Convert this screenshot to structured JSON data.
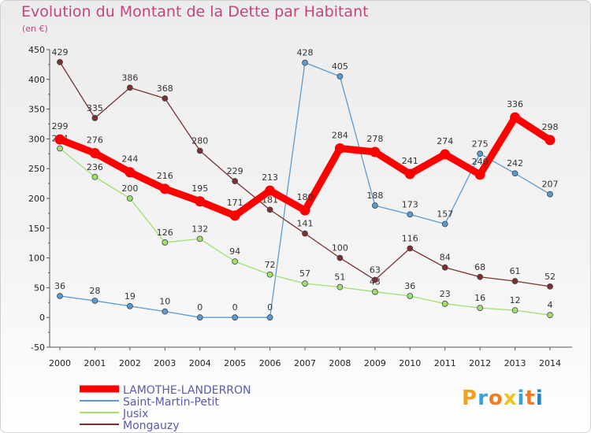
{
  "title": "Evolution du Montant de la Dette par Habitant",
  "unit": "(en €)",
  "logo": "Proxiti",
  "chart_data": {
    "type": "line",
    "title": "Evolution du Montant de la Dette par Habitant",
    "subtitle": "(en €)",
    "x": [
      "2000",
      "2001",
      "2002",
      "2003",
      "2004",
      "2005",
      "2006",
      "2007",
      "2008",
      "2009",
      "2010",
      "2011",
      "2012",
      "2013",
      "2014"
    ],
    "ylim": [
      -50,
      450
    ],
    "yticks": [
      -50,
      0,
      50,
      100,
      150,
      200,
      250,
      300,
      350,
      400,
      450
    ],
    "grid": false,
    "legend_position": "bottom-left",
    "series": [
      {
        "name": "LAMOTHE-LANDERRON",
        "color": "#ff0000",
        "values": [
          299,
          276,
          244,
          216,
          195,
          171,
          213,
          180,
          284,
          278,
          241,
          274,
          240,
          336,
          298
        ]
      },
      {
        "name": "Saint-Martin-Petit",
        "color": "#5b9bd0",
        "values": [
          36,
          28,
          19,
          10,
          0,
          0,
          0,
          428,
          405,
          188,
          173,
          157,
          275,
          242,
          207
        ]
      },
      {
        "name": "Jusix",
        "color": "#a0e070",
        "values": [
          284,
          236,
          200,
          126,
          132,
          94,
          72,
          57,
          51,
          43,
          36,
          23,
          16,
          12,
          4
        ]
      },
      {
        "name": "Mongauzy",
        "color": "#7a3030",
        "values": [
          429,
          335,
          386,
          368,
          280,
          229,
          181,
          141,
          100,
          63,
          116,
          84,
          68,
          61,
          52
        ]
      }
    ]
  }
}
